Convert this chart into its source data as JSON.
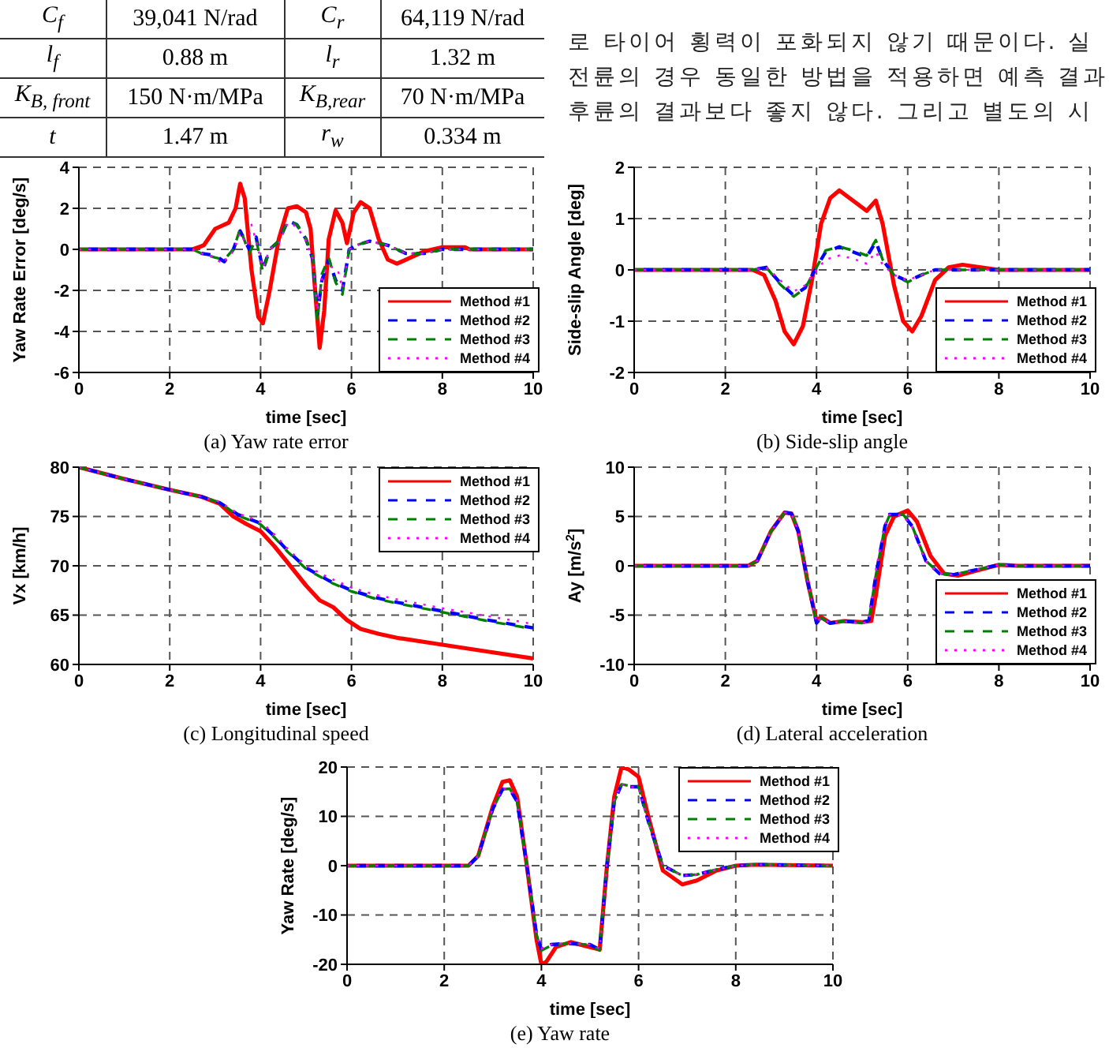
{
  "chart_data": [
    {
      "type": "other",
      "annotations": [
        "C$_{f}$",
        "39,041 N/rad",
        "C$_{r}$",
        "64,119 N/rad",
        "l$_{f}$",
        "0.88 m",
        "l$_{r}$",
        "1.32 m",
        "K$_{B, front}$",
        "150 N·m/MPa",
        "K$_{B,rear}$",
        "70 N·m/MPa",
        "t",
        "1.47 m",
        "r$_{w}$",
        "0.334 m"
      ]
    },
    {
      "type": "other",
      "annotations": [
        "로 타이어 횡력이 포화되지 않기 때문이다. 실",
        "전륜의 경우 동일한 방법을 적용하면 예측 결과",
        "후륜의 결과보다 좋지 않다. 그리고 별도의 시"
      ]
    },
    {
      "type": "line",
      "xlabel": "time [sec]",
      "ylabel": "Yaw Rate Error [deg/s]",
      "annotations": [
        "(a) Yaw rate error"
      ],
      "xlim": [
        0,
        10
      ],
      "xticks": [
        0,
        2,
        4,
        6,
        8,
        10
      ],
      "ylim": [
        -6,
        4
      ],
      "yticks": [
        -6,
        -4,
        -2,
        0,
        2,
        4
      ],
      "grid": true,
      "legend": "bottom right",
      "series": [
        {
          "name": "Method #1",
          "color": "#ff0000",
          "line_style": "solid",
          "x": [
            0,
            2.5,
            2.75,
            3.0,
            3.3,
            3.45,
            3.55,
            3.65,
            3.8,
            3.95,
            4.05,
            4.2,
            4.4,
            4.6,
            4.8,
            5.0,
            5.1,
            5.2,
            5.3,
            5.4,
            5.5,
            5.65,
            5.8,
            5.9,
            6.05,
            6.2,
            6.4,
            6.6,
            6.8,
            7.0,
            7.3,
            7.6,
            8.0,
            8.5,
            8.6,
            10
          ],
          "values": [
            0,
            0,
            0.2,
            1.0,
            1.3,
            2.0,
            3.2,
            2.5,
            -1.0,
            -3.3,
            -3.6,
            -2.0,
            0.5,
            2.0,
            2.1,
            1.8,
            1.0,
            -2.0,
            -4.8,
            -3.0,
            0.5,
            1.9,
            1.3,
            0.3,
            1.8,
            2.3,
            2.0,
            0.5,
            -0.5,
            -0.7,
            -0.4,
            -0.1,
            0.1,
            0.1,
            0,
            0
          ]
        },
        {
          "name": "Method #2",
          "color": "#0000ff",
          "line_style": "dashed",
          "x": [
            0,
            2.5,
            2.7,
            3.0,
            3.2,
            3.4,
            3.55,
            3.75,
            3.9,
            4.05,
            4.2,
            4.4,
            4.6,
            4.8,
            5.0,
            5.15,
            5.25,
            5.35,
            5.5,
            5.65,
            5.8,
            5.95,
            6.1,
            6.4,
            6.8,
            7.2,
            7.6,
            8,
            10
          ],
          "values": [
            0,
            0,
            -0.2,
            -0.3,
            -0.6,
            0,
            0.9,
            0,
            0.6,
            -1.0,
            0,
            0.4,
            1.4,
            1.2,
            0.5,
            -0.5,
            -3.2,
            -1.5,
            -0.5,
            -1.5,
            -2.0,
            0,
            0.2,
            0.4,
            0.2,
            -0.2,
            -0.2,
            0,
            0
          ]
        },
        {
          "name": "Method #3",
          "color": "#008000",
          "line_style": "dashed",
          "x": [
            0,
            2.5,
            2.7,
            3.0,
            3.2,
            3.4,
            3.55,
            3.75,
            3.9,
            4.05,
            4.2,
            4.4,
            4.6,
            4.8,
            5.0,
            5.15,
            5.25,
            5.35,
            5.5,
            5.65,
            5.8,
            5.95,
            6.1,
            6.4,
            6.8,
            7.2,
            7.6,
            8,
            10
          ],
          "values": [
            0,
            0,
            -0.2,
            -0.4,
            -0.5,
            0,
            1.0,
            -0.2,
            0.5,
            -1.1,
            0,
            0.4,
            1.4,
            1.2,
            0.5,
            -0.4,
            -3.5,
            -1.2,
            -0.4,
            -1.6,
            -2.2,
            0,
            0.2,
            0.4,
            0.2,
            -0.2,
            -0.2,
            0,
            0
          ]
        },
        {
          "name": "Method #4",
          "color": "#ff00ff",
          "line_style": "dotted",
          "x": [
            0,
            2.5,
            2.7,
            3.0,
            3.15,
            3.4,
            3.55,
            3.7,
            3.8,
            3.9,
            4.05,
            4.2,
            4.4,
            4.6,
            4.8,
            5.0,
            5.15,
            5.25,
            5.35,
            5.5,
            5.7,
            5.8,
            5.95,
            6.1,
            6.4,
            6.8,
            7.2,
            7.6,
            8,
            10
          ],
          "values": [
            0,
            0,
            -0.2,
            -0.4,
            -0.7,
            -0.1,
            0.8,
            0.2,
            1.2,
            0.4,
            -0.9,
            0,
            0.3,
            1.3,
            1.1,
            0.4,
            -0.5,
            -3.0,
            -1.3,
            -0.8,
            -1.0,
            -1.9,
            0,
            0.2,
            0.4,
            0.2,
            -0.2,
            -0.2,
            0,
            0
          ]
        }
      ]
    },
    {
      "type": "line",
      "xlabel": "time [sec]",
      "ylabel": "Side-slip Angle [deg]",
      "annotations": [
        "(b) Side-slip angle"
      ],
      "xlim": [
        0,
        10
      ],
      "xticks": [
        0,
        2,
        4,
        6,
        8,
        10
      ],
      "ylim": [
        -2,
        2
      ],
      "yticks": [
        -2,
        -1,
        0,
        1,
        2
      ],
      "grid": true,
      "legend": "bottom right",
      "series": [
        {
          "name": "Method #1",
          "color": "#ff0000",
          "line_style": "solid",
          "x": [
            0,
            2.6,
            2.85,
            3.1,
            3.3,
            3.5,
            3.7,
            3.9,
            4.1,
            4.3,
            4.5,
            4.8,
            5.1,
            5.3,
            5.45,
            5.7,
            5.9,
            6.1,
            6.3,
            6.6,
            6.9,
            7.2,
            7.6,
            8,
            10
          ],
          "values": [
            0,
            0,
            -0.1,
            -0.6,
            -1.2,
            -1.45,
            -1.1,
            -0.2,
            0.9,
            1.4,
            1.55,
            1.35,
            1.15,
            1.35,
            0.9,
            -0.3,
            -1.0,
            -1.2,
            -0.9,
            -0.2,
            0.05,
            0.1,
            0.05,
            0,
            0
          ]
        },
        {
          "name": "Method #2",
          "color": "#0000ff",
          "line_style": "dashed",
          "x": [
            0,
            2.6,
            2.9,
            3.2,
            3.5,
            3.75,
            4.0,
            4.2,
            4.5,
            4.8,
            5.1,
            5.3,
            5.45,
            5.7,
            6.0,
            6.3,
            6.6,
            7,
            10
          ],
          "values": [
            0,
            0,
            0.05,
            -0.25,
            -0.5,
            -0.35,
            0.05,
            0.35,
            0.45,
            0.35,
            0.25,
            0.55,
            0.2,
            -0.1,
            -0.22,
            -0.1,
            0,
            0,
            0
          ]
        },
        {
          "name": "Method #3",
          "color": "#008000",
          "line_style": "dashed",
          "x": [
            0,
            2.6,
            2.9,
            3.2,
            3.5,
            3.75,
            4.0,
            4.2,
            4.5,
            4.8,
            5.1,
            5.3,
            5.45,
            5.7,
            6.0,
            6.3,
            6.6,
            7,
            10
          ],
          "values": [
            0,
            0,
            0.05,
            -0.28,
            -0.52,
            -0.36,
            0.05,
            0.38,
            0.45,
            0.38,
            0.28,
            0.58,
            0.2,
            -0.1,
            -0.24,
            -0.1,
            0,
            0,
            0
          ]
        },
        {
          "name": "Method #4",
          "color": "#ff00ff",
          "line_style": "dotted",
          "x": [
            0,
            2.6,
            2.9,
            3.2,
            3.5,
            3.75,
            4.0,
            4.2,
            4.5,
            4.8,
            5.1,
            5.3,
            5.45,
            5.7,
            6.0,
            6.3,
            6.6,
            7,
            10
          ],
          "values": [
            0,
            0,
            0.05,
            -0.2,
            -0.42,
            -0.3,
            0.0,
            0.2,
            0.28,
            0.22,
            0.12,
            0.35,
            0.1,
            -0.1,
            -0.2,
            -0.1,
            0,
            0,
            0
          ]
        }
      ]
    },
    {
      "type": "line",
      "xlabel": "time [sec]",
      "ylabel": "Vx [km/h]",
      "annotations": [
        "(c) Longitudinal speed"
      ],
      "xlim": [
        0,
        10
      ],
      "xticks": [
        0,
        2,
        4,
        6,
        8,
        10
      ],
      "ylim": [
        60,
        80
      ],
      "yticks": [
        60,
        65,
        70,
        75,
        80
      ],
      "grid": true,
      "legend": "top right",
      "series": [
        {
          "name": "Method #1",
          "color": "#ff0000",
          "line_style": "solid",
          "x": [
            0,
            1,
            2,
            2.7,
            3.1,
            3.4,
            3.7,
            4.0,
            4.3,
            4.6,
            5.0,
            5.3,
            5.6,
            5.9,
            6.2,
            6.6,
            7,
            8,
            9,
            10
          ],
          "values": [
            80,
            78.8,
            77.7,
            77,
            76.3,
            75,
            74.2,
            73.5,
            72,
            70.3,
            68,
            66.5,
            65.8,
            64.5,
            63.6,
            63.1,
            62.7,
            62,
            61.3,
            60.6
          ]
        },
        {
          "name": "Method #2",
          "color": "#0000ff",
          "line_style": "dashed",
          "x": [
            0,
            1,
            2,
            2.7,
            3.1,
            3.5,
            4.0,
            4.3,
            4.6,
            5,
            5.5,
            6,
            6.5,
            7,
            8,
            9,
            10
          ],
          "values": [
            80,
            78.8,
            77.7,
            77,
            76.4,
            75.2,
            74.3,
            73,
            71.5,
            69.8,
            68.5,
            67.5,
            66.8,
            66.3,
            65.4,
            64.5,
            63.7
          ]
        },
        {
          "name": "Method #3",
          "color": "#008000",
          "line_style": "dashed",
          "x": [
            0,
            1,
            2,
            2.7,
            3.1,
            3.5,
            4.0,
            4.3,
            4.6,
            5,
            5.5,
            6,
            6.5,
            7,
            8,
            9,
            10
          ],
          "values": [
            80,
            78.8,
            77.7,
            77,
            76.4,
            75.1,
            74.2,
            72.9,
            71.4,
            69.7,
            68.4,
            67.4,
            66.7,
            66.2,
            65.3,
            64.4,
            63.6
          ]
        },
        {
          "name": "Method #4",
          "color": "#ff00ff",
          "line_style": "dotted",
          "x": [
            0,
            1,
            2,
            2.7,
            3.1,
            3.5,
            4.0,
            4.3,
            4.6,
            5,
            5.5,
            6,
            6.5,
            7,
            8,
            9,
            10
          ],
          "values": [
            80,
            78.8,
            77.7,
            77,
            76.5,
            75.3,
            74.5,
            73.2,
            71.7,
            70,
            68.8,
            67.8,
            67.1,
            66.6,
            65.7,
            64.9,
            64.1
          ]
        }
      ]
    },
    {
      "type": "line",
      "xlabel": "time [sec]",
      "ylabel": "Ay [m/s$^{2}$]",
      "annotations": [
        "(d) Lateral acceleration"
      ],
      "xlim": [
        0,
        10
      ],
      "xticks": [
        0,
        2,
        4,
        6,
        8,
        10
      ],
      "ylim": [
        -10,
        10
      ],
      "yticks": [
        -10,
        -5,
        0,
        5,
        10
      ],
      "grid": true,
      "legend": "bottom right",
      "series": [
        {
          "name": "Method #1",
          "color": "#ff0000",
          "line_style": "solid",
          "x": [
            0,
            2.5,
            2.7,
            3.0,
            3.3,
            3.45,
            3.6,
            3.8,
            4.0,
            4.1,
            4.3,
            4.6,
            5.0,
            5.2,
            5.3,
            5.5,
            5.7,
            6.0,
            6.2,
            6.5,
            6.8,
            7.1,
            7.5,
            8.0,
            8.4,
            10
          ],
          "values": [
            0,
            0,
            0.5,
            3.5,
            5.4,
            5.3,
            3.5,
            -1.5,
            -5.6,
            -5.2,
            -5.8,
            -5.6,
            -5.7,
            -5.6,
            -3,
            3,
            5.0,
            5.6,
            4.5,
            1.0,
            -0.8,
            -1.0,
            -0.5,
            0.1,
            0,
            0
          ]
        },
        {
          "name": "Method #2",
          "color": "#0000ff",
          "line_style": "dashed",
          "x": [
            0,
            2.5,
            2.7,
            3.0,
            3.3,
            3.45,
            3.6,
            3.8,
            4.0,
            4.1,
            4.3,
            4.6,
            5.0,
            5.15,
            5.3,
            5.5,
            5.6,
            5.9,
            6.1,
            6.4,
            6.7,
            7.0,
            7.5,
            8.0,
            8.4,
            10
          ],
          "values": [
            0,
            0,
            0.5,
            3.5,
            5.4,
            5.3,
            3.5,
            -1.5,
            -5.8,
            -5.3,
            -5.8,
            -5.6,
            -5.8,
            -5.5,
            -1,
            4,
            5.2,
            5.2,
            4.0,
            0.5,
            -0.8,
            -0.9,
            -0.4,
            0.1,
            0,
            0
          ]
        },
        {
          "name": "Method #3",
          "color": "#008000",
          "line_style": "dashed",
          "x": [
            0,
            2.5,
            2.7,
            3.0,
            3.3,
            3.45,
            3.6,
            3.8,
            4.0,
            4.1,
            4.3,
            4.6,
            5.0,
            5.15,
            5.3,
            5.5,
            5.6,
            5.9,
            6.1,
            6.4,
            6.7,
            7.0,
            7.5,
            8.0,
            8.4,
            10
          ],
          "values": [
            0,
            0,
            0.5,
            3.5,
            5.4,
            5.3,
            3.5,
            -1.5,
            -5.8,
            -5.3,
            -5.8,
            -5.6,
            -5.8,
            -5.5,
            -1,
            4,
            5.1,
            5.2,
            4.0,
            0.5,
            -0.8,
            -0.9,
            -0.4,
            0.1,
            0,
            0
          ]
        },
        {
          "name": "Method #4",
          "color": "#ff00ff",
          "line_style": "dotted",
          "x": [
            0,
            2.5,
            2.7,
            3.0,
            3.3,
            3.45,
            3.6,
            3.8,
            4.0,
            4.1,
            4.3,
            4.6,
            5.0,
            5.15,
            5.3,
            5.5,
            5.6,
            5.9,
            6.1,
            6.4,
            6.7,
            7.0,
            7.5,
            8.0,
            8.4,
            10
          ],
          "values": [
            0,
            0,
            0.5,
            3.5,
            5.4,
            5.3,
            3.5,
            -1.5,
            -5.8,
            -5.3,
            -5.8,
            -5.6,
            -5.9,
            -5.5,
            -0.5,
            4.2,
            5.2,
            5.1,
            3.9,
            0.4,
            -0.8,
            -0.9,
            -0.4,
            0.1,
            0,
            0
          ]
        }
      ]
    },
    {
      "type": "line",
      "xlabel": "time [sec]",
      "ylabel": "Yaw Rate [deg/s]",
      "annotations": [
        "(e) Yaw rate"
      ],
      "xlim": [
        0,
        10
      ],
      "xticks": [
        0,
        2,
        4,
        6,
        8,
        10
      ],
      "ylim": [
        -20,
        20
      ],
      "yticks": [
        -20,
        -10,
        0,
        10,
        20
      ],
      "grid": true,
      "legend": "top right",
      "series": [
        {
          "name": "Method #1",
          "color": "#ff0000",
          "line_style": "solid",
          "x": [
            0,
            2.5,
            2.7,
            3.0,
            3.2,
            3.35,
            3.5,
            3.7,
            3.9,
            4.0,
            4.1,
            4.3,
            4.6,
            5.0,
            5.2,
            5.35,
            5.5,
            5.65,
            5.8,
            6.0,
            6.2,
            6.5,
            6.9,
            7.2,
            7.6,
            8.0,
            8.4,
            10
          ],
          "values": [
            0,
            0,
            2,
            12,
            17,
            17.3,
            14,
            0,
            -15,
            -20,
            -19.5,
            -16.5,
            -15.5,
            -16.5,
            -17,
            0,
            14,
            20,
            19.5,
            18,
            10,
            -1,
            -3.8,
            -3,
            -1,
            0,
            0.2,
            0
          ]
        },
        {
          "name": "Method #2",
          "color": "#0000ff",
          "line_style": "dashed",
          "x": [
            0,
            2.5,
            2.7,
            3.0,
            3.2,
            3.35,
            3.5,
            3.7,
            3.9,
            4.0,
            4.2,
            4.5,
            5.0,
            5.2,
            5.35,
            5.5,
            5.65,
            5.8,
            6.0,
            6.2,
            6.5,
            6.9,
            7.2,
            7.6,
            8.0,
            8.4,
            10
          ],
          "values": [
            0,
            0,
            2,
            11.5,
            15.5,
            15.5,
            13,
            0,
            -14,
            -17,
            -16,
            -15.8,
            -16,
            -17,
            0,
            13,
            16.5,
            16,
            16,
            9,
            0,
            -2,
            -1.8,
            -0.8,
            0,
            0.2,
            0
          ]
        },
        {
          "name": "Method #3",
          "color": "#008000",
          "line_style": "dashed",
          "x": [
            0,
            2.5,
            2.7,
            3.0,
            3.2,
            3.35,
            3.5,
            3.7,
            3.9,
            4.0,
            4.2,
            4.5,
            5.0,
            5.2,
            5.35,
            5.5,
            5.65,
            5.8,
            6.0,
            6.2,
            6.5,
            6.9,
            7.2,
            7.6,
            8.0,
            8.4,
            10
          ],
          "values": [
            0,
            0,
            2,
            11.5,
            15.5,
            15.6,
            13,
            0,
            -14,
            -17.2,
            -16.2,
            -15.8,
            -16,
            -17.2,
            0,
            13,
            16.5,
            16.2,
            16,
            9,
            0,
            -2,
            -1.8,
            -0.8,
            0,
            0.2,
            0
          ]
        },
        {
          "name": "Method #4",
          "color": "#ff00ff",
          "line_style": "dotted",
          "x": [
            0,
            2.5,
            2.7,
            3.0,
            3.2,
            3.35,
            3.5,
            3.7,
            3.9,
            4.0,
            4.2,
            4.5,
            5.0,
            5.2,
            5.35,
            5.5,
            5.65,
            5.8,
            6.0,
            6.2,
            6.5,
            6.9,
            7.2,
            7.6,
            8.0,
            8.4,
            10
          ],
          "values": [
            0,
            0,
            2,
            11.7,
            15.7,
            15.6,
            13.2,
            0,
            -14,
            -16.8,
            -16,
            -15.7,
            -16,
            -16.8,
            1,
            13.5,
            16.5,
            16,
            15.8,
            8.8,
            0,
            -2,
            -1.8,
            -0.8,
            0,
            0.2,
            0
          ]
        }
      ]
    }
  ]
}
